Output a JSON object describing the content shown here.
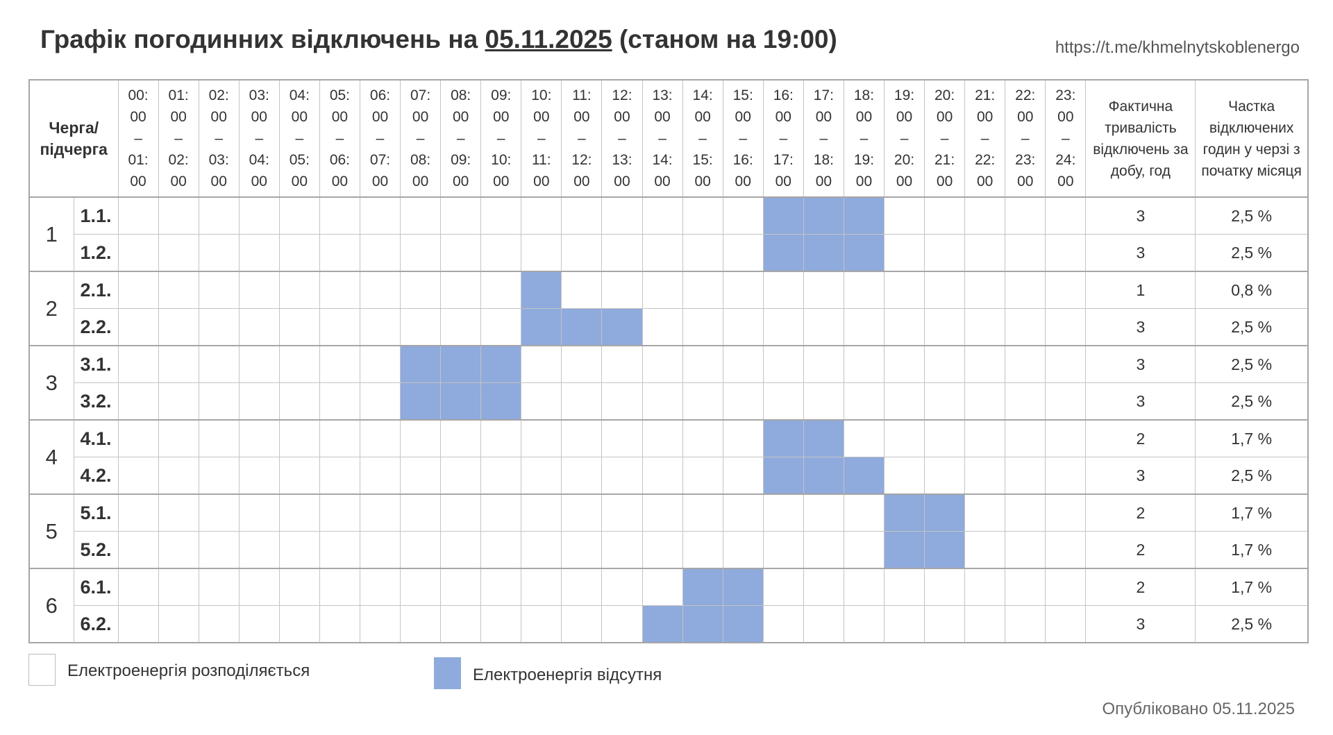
{
  "header": {
    "title_prefix": "Графік погодинних відключень на ",
    "title_date": "05.11.2025",
    "title_suffix": " (станом на 19:00)",
    "link": "https://t.me/khmelnytskoblenergo"
  },
  "table": {
    "queue_header": "Черга/ підчерга",
    "hours": [
      "00:00 – 01:00",
      "01:00 – 02:00",
      "02:00 – 03:00",
      "03:00 – 04:00",
      "04:00 – 05:00",
      "05:00 – 06:00",
      "06:00 – 07:00",
      "07:00 – 08:00",
      "08:00 – 09:00",
      "09:00 – 10:00",
      "10:00 – 11:00",
      "11:00 – 12:00",
      "12:00 – 13:00",
      "13:00 – 14:00",
      "14:00 – 15:00",
      "15:00 – 16:00",
      "16:00 – 17:00",
      "17:00 – 18:00",
      "18:00 – 19:00",
      "19:00 – 20:00",
      "20:00 – 21:00",
      "21:00 – 22:00",
      "22:00 – 23:00",
      "23:00 – 24:00"
    ],
    "duration_header": "Фактична тривалість відключень за добу, год",
    "share_header": "Частка відключених годин у черзі з початку місяця",
    "groups": [
      {
        "queue": "1",
        "rows": [
          {
            "sub": "1.1.",
            "outage_hours": [
              16,
              17,
              18
            ],
            "duration": 3,
            "share": "2,5 %"
          },
          {
            "sub": "1.2.",
            "outage_hours": [
              16,
              17,
              18
            ],
            "duration": 3,
            "share": "2,5 %"
          }
        ]
      },
      {
        "queue": "2",
        "rows": [
          {
            "sub": "2.1.",
            "outage_hours": [
              10
            ],
            "duration": 1,
            "share": "0,8 %"
          },
          {
            "sub": "2.2.",
            "outage_hours": [
              10,
              11,
              12
            ],
            "duration": 3,
            "share": "2,5 %"
          }
        ]
      },
      {
        "queue": "3",
        "rows": [
          {
            "sub": "3.1.",
            "outage_hours": [
              7,
              8,
              9
            ],
            "duration": 3,
            "share": "2,5 %"
          },
          {
            "sub": "3.2.",
            "outage_hours": [
              7,
              8,
              9
            ],
            "duration": 3,
            "share": "2,5 %"
          }
        ]
      },
      {
        "queue": "4",
        "rows": [
          {
            "sub": "4.1.",
            "outage_hours": [
              16,
              17
            ],
            "duration": 2,
            "share": "1,7 %"
          },
          {
            "sub": "4.2.",
            "outage_hours": [
              16,
              17,
              18
            ],
            "duration": 3,
            "share": "2,5 %"
          }
        ]
      },
      {
        "queue": "5",
        "rows": [
          {
            "sub": "5.1.",
            "outage_hours": [
              19,
              20
            ],
            "duration": 2,
            "share": "1,7 %"
          },
          {
            "sub": "5.2.",
            "outage_hours": [
              19,
              20
            ],
            "duration": 2,
            "share": "1,7 %"
          }
        ]
      },
      {
        "queue": "6",
        "rows": [
          {
            "sub": "6.1.",
            "outage_hours": [
              14,
              15
            ],
            "duration": 2,
            "share": "1,7 %"
          },
          {
            "sub": "6.2.",
            "outage_hours": [
              13,
              14,
              15
            ],
            "duration": 3,
            "share": "2,5 %"
          }
        ]
      }
    ]
  },
  "legend": {
    "on": "Електроенергія розподіляється",
    "off": "Електроенергія відсутня"
  },
  "footer": {
    "published": "Опубліковано 05.11.2025"
  }
}
